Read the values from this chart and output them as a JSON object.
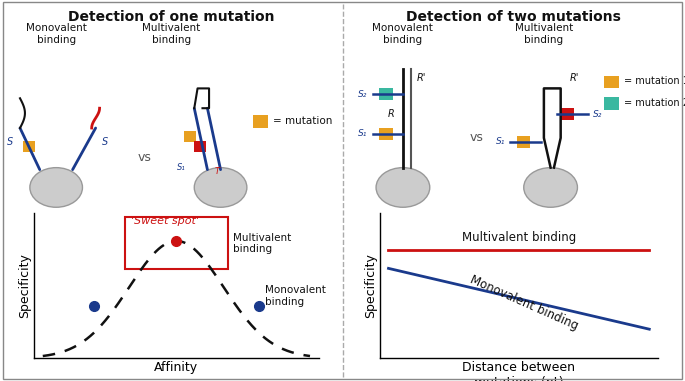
{
  "title_left": "Detection of one mutation",
  "title_right": "Detection of two mutations",
  "bg_color": "#ffffff",
  "left_panel": {
    "monovalent_label": "Monovalent\nbinding",
    "multivalent_label": "Multivalent\nbinding",
    "vs_label": "vs",
    "mutation_label": "= mutation",
    "mutation_color": "#e8a020",
    "graph": {
      "xlabel": "Affinity",
      "ylabel": "Specificity",
      "sweet_spot_label": "'Sweet spot'",
      "multivalent_label": "Multivalent\nbinding",
      "monovalent_label": "Monovalent\nbinding",
      "red_dot_color": "#cc1111",
      "blue_dot_color": "#1a3a8c",
      "rect_color": "#cc1111",
      "sweet_spot_text_color": "#cc1111"
    }
  },
  "right_panel": {
    "monovalent_label": "Monovalent\nbinding",
    "multivalent_label": "Multivalent\nbinding",
    "vs_label": "vs",
    "mutation1_label": "= mutation 1",
    "mutation2_label": "= mutation 2",
    "mutation1_color": "#e8a020",
    "mutation2_color": "#3ab8a0",
    "graph": {
      "xlabel": "Distance between\nmutations (nt)",
      "ylabel": "Specificity",
      "multivalent_label": "Multivalent binding",
      "monovalent_label": "Monovalent binding",
      "red_line_color": "#cc1111",
      "blue_line_color": "#1a3a8c"
    }
  }
}
